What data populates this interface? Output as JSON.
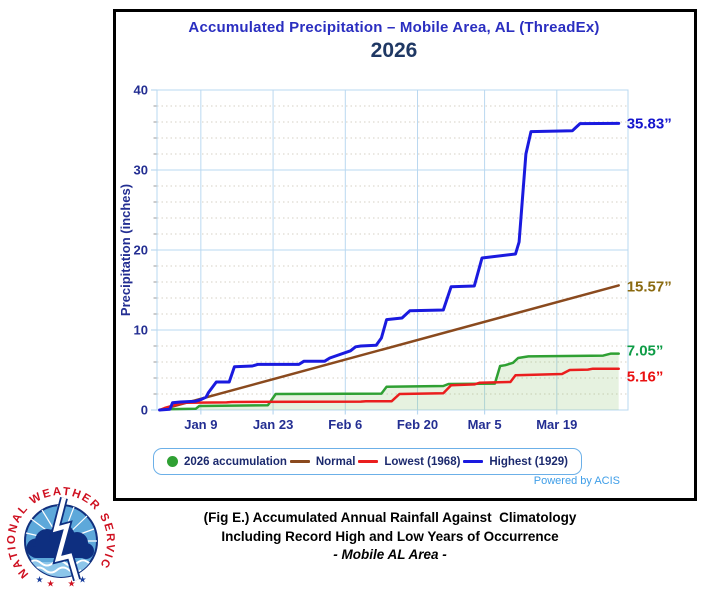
{
  "header": {
    "title": "Accumulated Precipitation – Mobile Area, AL (ThreadEx)",
    "year": "2026"
  },
  "chart_data": {
    "type": "line",
    "title": "Accumulated Precipitation – Mobile Area, AL (ThreadEx)",
    "subtitle": "2026",
    "xlabel": "",
    "ylabel": "Precipitation (inches)",
    "ylim": [
      0,
      40
    ],
    "x_range_days": [
      0.5,
      91.8
    ],
    "y_major_ticks": [
      0,
      10,
      20,
      30,
      40
    ],
    "y_minor_step": 2,
    "x_ticks": [
      {
        "day": 9,
        "label": "Jan 9"
      },
      {
        "day": 23,
        "label": "Jan 23"
      },
      {
        "day": 37,
        "label": "Feb 6"
      },
      {
        "day": 51,
        "label": "Feb 20"
      },
      {
        "day": 64,
        "label": "Mar 5"
      },
      {
        "day": 78,
        "label": "Mar 19"
      }
    ],
    "grid": {
      "major_color": "#bad8f0",
      "minor_color": "#d6d0c4",
      "minor_style": "dotted",
      "tick_color": "#9a9a9a"
    },
    "series": [
      {
        "name": "Highest (1929)",
        "color": "#1a1adf",
        "label_color": "#1414cc",
        "end_label": "35.83”",
        "end_value": 35.83,
        "stroke_width": 3,
        "draw_order": 4,
        "label_dy": 0,
        "points": [
          [
            1,
            0
          ],
          [
            3,
            0.1
          ],
          [
            3.5,
            0.9
          ],
          [
            5,
            1.0
          ],
          [
            8,
            1.1
          ],
          [
            9,
            1.3
          ],
          [
            10,
            1.6
          ],
          [
            10.5,
            2.2
          ],
          [
            12,
            3.5
          ],
          [
            14.5,
            3.5
          ],
          [
            15.5,
            5.4
          ],
          [
            19,
            5.5
          ],
          [
            20,
            5.7
          ],
          [
            28,
            5.7
          ],
          [
            29,
            6.1
          ],
          [
            33,
            6.1
          ],
          [
            34,
            6.5
          ],
          [
            38,
            7.4
          ],
          [
            39,
            7.9
          ],
          [
            40,
            8.0
          ],
          [
            43,
            8.1
          ],
          [
            44,
            9.0
          ],
          [
            45,
            11.3
          ],
          [
            48,
            11.5
          ],
          [
            49.5,
            12.4
          ],
          [
            56,
            12.5
          ],
          [
            57.5,
            15.4
          ],
          [
            62,
            15.5
          ],
          [
            63.5,
            19.0
          ],
          [
            70,
            19.5
          ],
          [
            70.7,
            21.0
          ],
          [
            72,
            32.0
          ],
          [
            73,
            34.8
          ],
          [
            81,
            34.9
          ],
          [
            82.5,
            35.8
          ],
          [
            90,
            35.83
          ]
        ]
      },
      {
        "name": "Normal",
        "color": "#8a4a1e",
        "label_color": "#8a6a10",
        "end_label": "15.57”",
        "end_value": 15.57,
        "stroke_width": 2.5,
        "draw_order": 1,
        "label_dy": 1,
        "points": [
          [
            1,
            0
          ],
          [
            90,
            15.57
          ]
        ]
      },
      {
        "name": "2026 accumulation",
        "color": "#2fa033",
        "label_color": "#0e9c46",
        "end_label": "7.05”",
        "end_value": 7.05,
        "stroke_width": 2.5,
        "draw_order": 2,
        "label_dy": -3,
        "fill": true,
        "fill_color": "rgba(140,195,115,0.22)",
        "points": [
          [
            1,
            0
          ],
          [
            2,
            0.1
          ],
          [
            8,
            0.15
          ],
          [
            8.7,
            0.5
          ],
          [
            22,
            0.6
          ],
          [
            23.5,
            2.0
          ],
          [
            44,
            2.05
          ],
          [
            45,
            2.9
          ],
          [
            56,
            3.0
          ],
          [
            57,
            3.25
          ],
          [
            66,
            3.3
          ],
          [
            67,
            5.5
          ],
          [
            68,
            5.6
          ],
          [
            69.5,
            5.9
          ],
          [
            70.5,
            6.5
          ],
          [
            72.5,
            6.7
          ],
          [
            87,
            6.8
          ],
          [
            88.5,
            7.05
          ],
          [
            90,
            7.05
          ]
        ]
      },
      {
        "name": "Lowest (1968)",
        "color": "#ea1e1e",
        "label_color": "#ea1111",
        "end_label": "5.16”",
        "end_value": 5.16,
        "stroke_width": 2.5,
        "draw_order": 3,
        "label_dy": 8,
        "points": [
          [
            1,
            0
          ],
          [
            2,
            0.25
          ],
          [
            3,
            0.45
          ],
          [
            5,
            0.8
          ],
          [
            6,
            0.9
          ],
          [
            14,
            0.95
          ],
          [
            15,
            1.0
          ],
          [
            40,
            1.05
          ],
          [
            41,
            1.1
          ],
          [
            46,
            1.1
          ],
          [
            47.5,
            2.0
          ],
          [
            56,
            2.1
          ],
          [
            57.5,
            3.1
          ],
          [
            62,
            3.2
          ],
          [
            63,
            3.4
          ],
          [
            69,
            3.5
          ],
          [
            70,
            4.35
          ],
          [
            79,
            4.5
          ],
          [
            80.5,
            5.0
          ],
          [
            84,
            5.05
          ],
          [
            85,
            5.16
          ],
          [
            90,
            5.16
          ]
        ]
      }
    ],
    "legend": {
      "position": "bottom",
      "entries": [
        {
          "label": "2026 accumulation",
          "marker": "dot",
          "color": "#2fa033"
        },
        {
          "label": "Normal",
          "marker": "line",
          "color": "#8a4a1e"
        },
        {
          "label": "Lowest (1968)",
          "marker": "line",
          "color": "#ea1e1e"
        },
        {
          "label": "Highest (1929)",
          "marker": "line",
          "color": "#1a1adf"
        }
      ]
    }
  },
  "footer": {
    "powered_by": "Powered by ACIS"
  },
  "caption": {
    "line1": "(Fig E.) Accumulated Annual Rainfall Against  Climatology",
    "line2": "Including Record High and Low Years of Occurrence",
    "line3": "- Mobile AL Area -"
  },
  "logo": {
    "ring_text": "NATIONAL WEATHER SERVICE",
    "stars": [
      "★",
      "★",
      "★",
      "★"
    ],
    "star_colors": [
      "#1a3f9e",
      "#cf1020",
      "#cf1020",
      "#1a3f9e"
    ]
  }
}
